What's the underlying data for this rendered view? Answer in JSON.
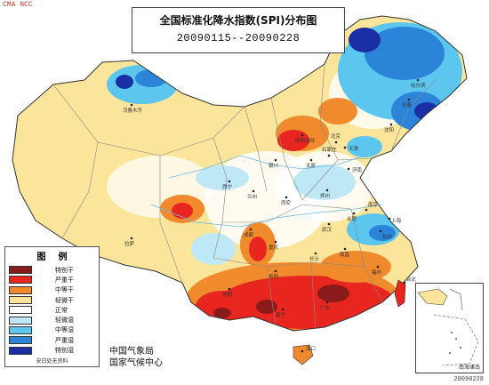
{
  "watermark": "CMA NCC",
  "title": {
    "line1": "全国标准化降水指数(SPI)分布图",
    "line2": "20090115--20090228"
  },
  "legend": {
    "heading": "图例",
    "items": [
      {
        "label": "特别干",
        "color": "#8b1a1a"
      },
      {
        "label": "严重干",
        "color": "#e8261f"
      },
      {
        "label": "中等干",
        "color": "#f08a2c"
      },
      {
        "label": "轻微干",
        "color": "#fbe59a"
      },
      {
        "label": "正常",
        "color": "#ffffff"
      },
      {
        "label": "轻微湿",
        "color": "#bfe8f7"
      },
      {
        "label": "中等湿",
        "color": "#5cc6ee"
      },
      {
        "label": "严重湿",
        "color": "#2c84d8"
      },
      {
        "label": "特别湿",
        "color": "#1a2fa6"
      }
    ],
    "footnote": "安白处无资料"
  },
  "organization": {
    "line1": "中国气象局",
    "line2": "国家气候中心"
  },
  "inset_label": "南海诸岛",
  "date_stamp": "20090228",
  "cities": [
    "乌鲁木齐",
    "呼和浩特",
    "西宁",
    "兰州",
    "银川",
    "太原",
    "石家庄",
    "北京",
    "天津",
    "济南",
    "郑州",
    "西安",
    "拉萨",
    "成都",
    "重庆",
    "武汉",
    "合肥",
    "南京",
    "上海",
    "杭州",
    "长沙",
    "南昌",
    "福州",
    "贵阳",
    "昆明",
    "南宁",
    "广州",
    "台北",
    "海口",
    "沈阳",
    "长春",
    "哈尔滨"
  ]
}
